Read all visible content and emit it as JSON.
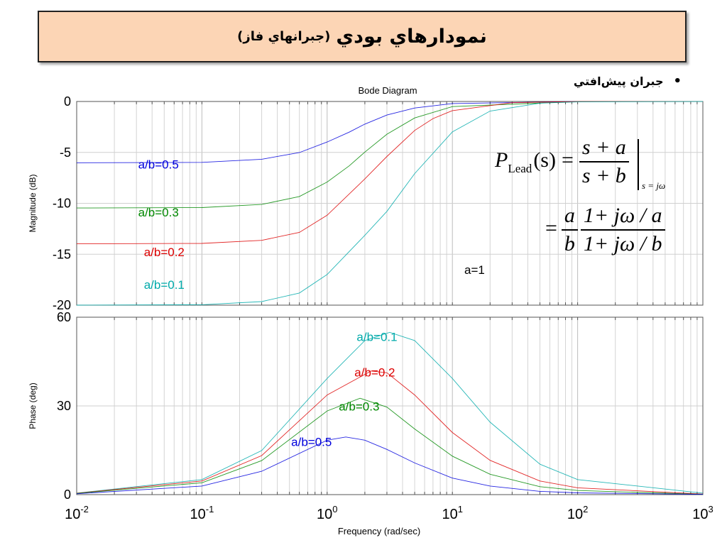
{
  "slide": {
    "title_main": "نمودارهاي بودي",
    "title_sub": "(جبرانهاي فاز)",
    "bullet": "جبران پيش‌افتي"
  },
  "formula": {
    "P": "P",
    "lead_sub": "Lead",
    "lhs_arg": "(s)",
    "eq": "=",
    "num1": "s + a",
    "den1": "s + b",
    "eval_at": "s = jω",
    "a": "a",
    "b": "b",
    "num2": "1+ jω / a",
    "den2": "1+ jω / b"
  },
  "chart_data": [
    {
      "type": "line",
      "title": "Bode Diagram",
      "ylabel": "Magnitude (dB)",
      "xscale": "log",
      "xlim": [
        0.01,
        1000
      ],
      "ylim": [
        -20,
        0
      ],
      "yticks": [
        0,
        -5,
        -10,
        -15,
        -20
      ],
      "grid": true,
      "annotation": "a=1",
      "series": [
        {
          "name": "a/b=0.5",
          "color": "#0000dd",
          "b": 2,
          "x": [
            0.01,
            0.1,
            0.3,
            0.6,
            1,
            1.5,
            2,
            3,
            5,
            10,
            100,
            1000
          ],
          "y": [
            -6.02,
            -5.98,
            -5.67,
            -5.02,
            -3.98,
            -3.01,
            -2.22,
            -1.33,
            -0.64,
            -0.2,
            0.0,
            0.0
          ]
        },
        {
          "name": "a/b=0.3",
          "color": "#008800",
          "b": 3.333,
          "x": [
            0.01,
            0.1,
            0.3,
            0.6,
            1,
            1.5,
            2,
            3,
            5,
            10,
            100,
            1000
          ],
          "y": [
            -10.46,
            -10.42,
            -10.11,
            -9.33,
            -7.91,
            -6.32,
            -4.97,
            -3.21,
            -1.62,
            -0.5,
            -0.01,
            0.0
          ]
        },
        {
          "name": "a/b=0.2",
          "color": "#dd0000",
          "b": 5,
          "x": [
            0.01,
            0.1,
            0.3,
            0.6,
            1,
            2,
            3,
            5,
            7,
            10,
            30,
            100,
            1000
          ],
          "y": [
            -13.98,
            -13.94,
            -13.64,
            -12.86,
            -11.17,
            -7.6,
            -5.4,
            -2.84,
            -1.68,
            -0.9,
            -0.12,
            -0.01,
            0.0
          ]
        },
        {
          "name": "a/b=0.1",
          "color": "#00aaaa",
          "b": 10,
          "x": [
            0.01,
            0.1,
            0.3,
            0.6,
            1,
            2,
            3,
            5,
            10,
            20,
            50,
            100,
            1000
          ],
          "y": [
            -20.0,
            -19.96,
            -19.65,
            -18.81,
            -16.99,
            -13.14,
            -10.79,
            -7.08,
            -2.99,
            -0.94,
            -0.17,
            -0.04,
            0.0
          ]
        }
      ]
    },
    {
      "type": "line",
      "ylabel": "Phase (deg)",
      "xlabel": "Frequency  (rad/sec)",
      "xscale": "log",
      "xlim": [
        0.01,
        1000
      ],
      "ylim": [
        0,
        60
      ],
      "yticks": [
        60,
        30,
        0
      ],
      "xtick_labels": [
        {
          "base": "10",
          "exp": "-2"
        },
        {
          "base": "10",
          "exp": "-1"
        },
        {
          "base": "10",
          "exp": "0"
        },
        {
          "base": "10",
          "exp": "1"
        },
        {
          "base": "10",
          "exp": "2"
        },
        {
          "base": "10",
          "exp": "3"
        }
      ],
      "grid": true,
      "series": [
        {
          "name": "a/b=0.1",
          "color": "#00aaaa",
          "x": [
            0.01,
            0.1,
            0.3,
            1,
            2,
            3.16,
            5,
            10,
            20,
            50,
            100,
            1000
          ],
          "y": [
            0.51,
            5.1,
            14.9,
            39.3,
            52.1,
            54.9,
            52.1,
            39.3,
            24.5,
            10.3,
            5.1,
            0.5
          ]
        },
        {
          "name": "a/b=0.2",
          "color": "#dd0000",
          "x": [
            0.01,
            0.1,
            0.3,
            1,
            2.24,
            3,
            5,
            10,
            20,
            50,
            100,
            1000
          ],
          "y": [
            0.46,
            4.6,
            13.2,
            33.7,
            41.8,
            41.2,
            33.7,
            21.0,
            11.6,
            4.6,
            2.3,
            0.2
          ]
        },
        {
          "name": "a/b=0.3",
          "color": "#008800",
          "x": [
            0.01,
            0.1,
            0.3,
            1,
            1.83,
            3,
            5,
            10,
            20,
            50,
            100,
            1000
          ],
          "y": [
            0.4,
            4.0,
            11.5,
            28.3,
            32.6,
            29.6,
            22.2,
            13.0,
            6.9,
            2.7,
            1.4,
            0.1
          ]
        },
        {
          "name": "a/b=0.5",
          "color": "#0000dd",
          "x": [
            0.01,
            0.1,
            0.3,
            1,
            1.41,
            2,
            3,
            5,
            10,
            20,
            50,
            100,
            1000
          ],
          "y": [
            0.29,
            2.9,
            7.9,
            18.4,
            19.5,
            18.4,
            15.3,
            10.7,
            5.6,
            2.9,
            1.1,
            0.6,
            0.1
          ]
        }
      ]
    }
  ],
  "label_placement": {
    "mag": [
      {
        "text": "a/b=0.5",
        "color": "#0000dd"
      },
      {
        "text": "a/b=0.3",
        "color": "#008800"
      },
      {
        "text": "a/b=0.2",
        "color": "#dd0000"
      },
      {
        "text": "a/b=0.1",
        "color": "#00aaaa"
      }
    ],
    "phase": [
      {
        "text": "a/b=0.1",
        "color": "#00aaaa"
      },
      {
        "text": "a/b=0.2",
        "color": "#dd0000"
      },
      {
        "text": "a/b=0.3",
        "color": "#008800"
      },
      {
        "text": "a/b=0.5",
        "color": "#0000dd"
      }
    ]
  }
}
